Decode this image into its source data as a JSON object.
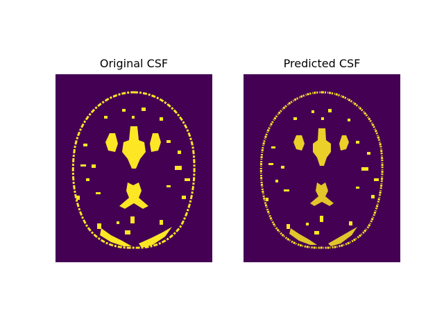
{
  "panels": [
    {
      "title": "Original CSF"
    },
    {
      "title": "Predicted CSF"
    }
  ],
  "colors": {
    "background": "#440154",
    "csf": "#fde725",
    "edge": "#21918c"
  }
}
